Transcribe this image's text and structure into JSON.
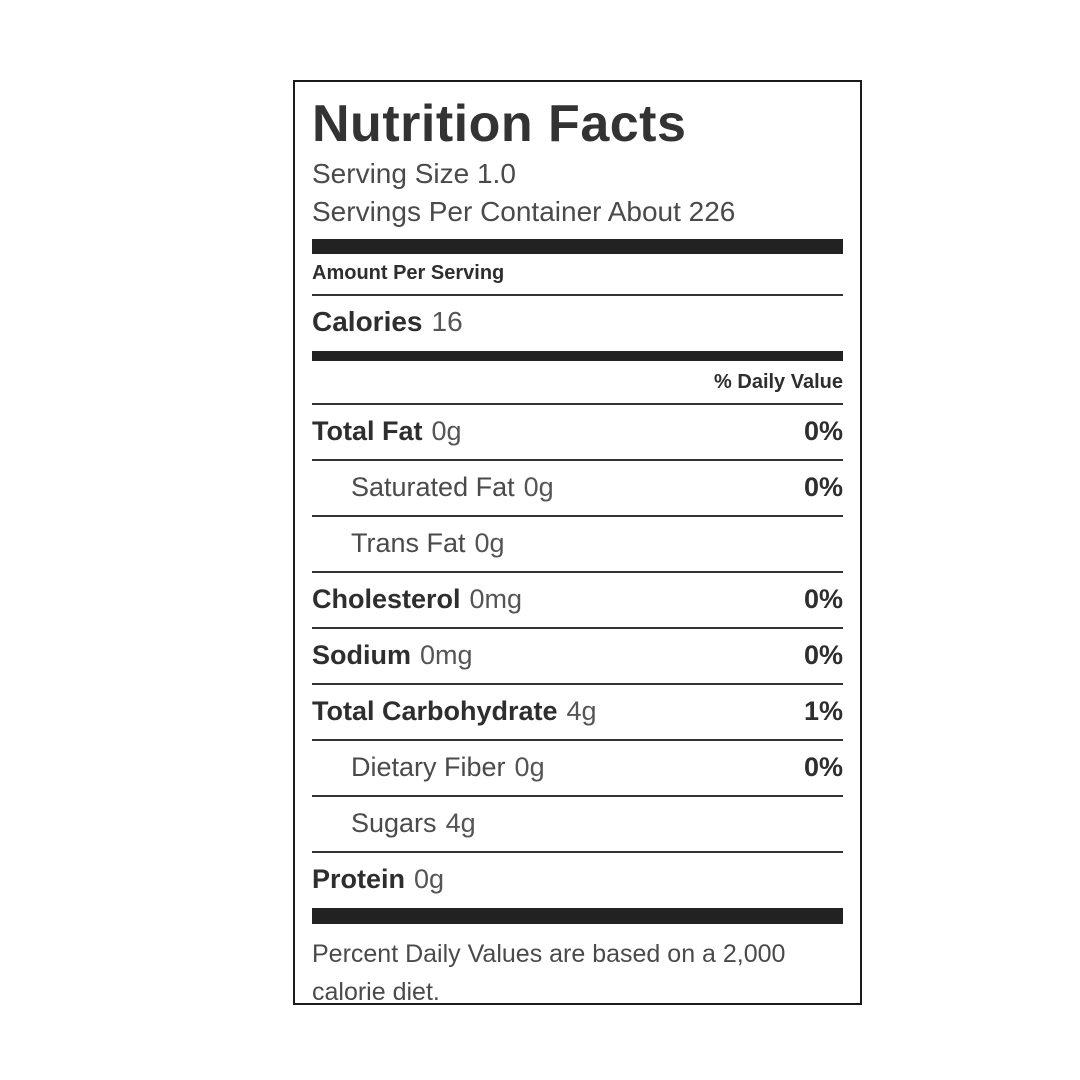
{
  "colors": {
    "text": "#333333",
    "muted_text": "#4a4a4a",
    "amount_text": "#555555",
    "bar": "#222222",
    "rule": "#333333",
    "border": "#1b1b1b",
    "background": "#ffffff"
  },
  "label": {
    "title": "Nutrition Facts",
    "serving_size": "Serving Size 1.0",
    "servings_per_container": "Servings Per Container About 226",
    "amount_per_serving": "Amount Per Serving",
    "calories": {
      "name": "Calories",
      "value": "16"
    },
    "daily_value_header": "% Daily Value",
    "rows": [
      {
        "name": "Total Fat",
        "amount": "0g",
        "dv": "0%"
      },
      {
        "name": "Saturated Fat",
        "amount": "0g",
        "dv": "0%"
      },
      {
        "name": "Trans Fat",
        "amount": "0g",
        "dv": ""
      },
      {
        "name": "Cholesterol",
        "amount": "0mg",
        "dv": "0%"
      },
      {
        "name": "Sodium",
        "amount": "0mg",
        "dv": "0%"
      },
      {
        "name": "Total Carbohydrate",
        "amount": "4g",
        "dv": "1%"
      },
      {
        "name": "Dietary Fiber",
        "amount": "0g",
        "dv": "0%"
      },
      {
        "name": "Sugars",
        "amount": "4g",
        "dv": ""
      },
      {
        "name": "Protein",
        "amount": "0g",
        "dv": ""
      }
    ],
    "footnote": "Percent Daily Values are based on a 2,000 calorie diet."
  }
}
